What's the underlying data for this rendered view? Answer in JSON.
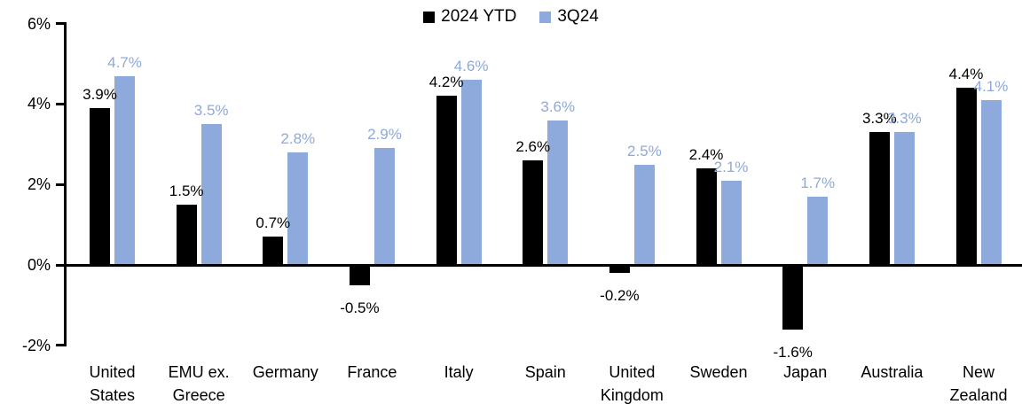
{
  "chart_data": {
    "type": "bar",
    "title": "",
    "categories": [
      "United States",
      "EMU ex. Greece",
      "Germany",
      "France",
      "Italy",
      "Spain",
      "United Kingdom",
      "Sweden",
      "Japan",
      "Australia",
      "New Zealand"
    ],
    "category_tick_labels": [
      "United\nStates",
      "EMU ex.\nGreece",
      "Germany",
      "France",
      "Italy",
      "Spain",
      "United\nKingdom",
      "Sweden",
      "Japan",
      "Australia",
      "New\nZealand"
    ],
    "series": [
      {
        "name": "2024 YTD",
        "color": "#000000",
        "label_color": "#000000",
        "values": [
          3.9,
          1.5,
          0.7,
          -0.5,
          4.2,
          2.6,
          -0.2,
          2.4,
          -1.6,
          3.3,
          4.4
        ],
        "labels": [
          "3.9%",
          "1.5%",
          "0.7%",
          "-0.5%",
          "4.2%",
          "2.6%",
          "-0.2%",
          "2.4%",
          "-1.6%",
          "3.3%",
          "4.4%"
        ]
      },
      {
        "name": "3Q24",
        "color": "#8EA9DB",
        "label_color": "#8EA9DB",
        "values": [
          4.7,
          3.5,
          2.8,
          2.9,
          4.6,
          3.6,
          2.5,
          2.1,
          1.7,
          3.3,
          4.1
        ],
        "labels": [
          "4.7%",
          "3.5%",
          "2.8%",
          "2.9%",
          "4.6%",
          "3.6%",
          "2.5%",
          "2.1%",
          "1.7%",
          "3.3%",
          "4.1%"
        ]
      }
    ],
    "xlabel": "",
    "ylabel": "",
    "ylim": [
      -2,
      6
    ],
    "yticks": [
      {
        "value": 6,
        "label": "6%"
      },
      {
        "value": 4,
        "label": "4%"
      },
      {
        "value": 2,
        "label": "2%"
      },
      {
        "value": 0,
        "label": "0%"
      },
      {
        "value": -2,
        "label": "-2%"
      }
    ],
    "grid": false,
    "legend_position": "top-center",
    "value_suffix": "%"
  },
  "colors": {
    "background": "#FFFFFF",
    "axis": "#000000",
    "series_black": "#000000",
    "series_blue": "#8EA9DB"
  }
}
